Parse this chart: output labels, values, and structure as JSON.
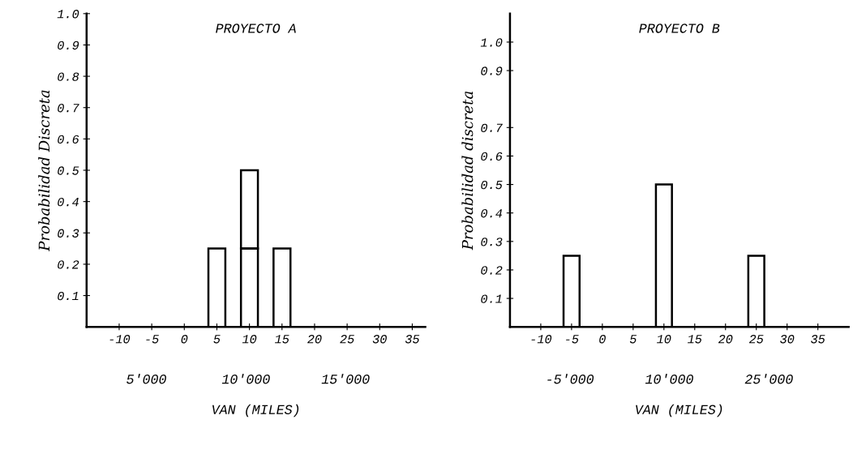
{
  "chart_data": [
    {
      "type": "bar",
      "title": "PROYECTO A",
      "xlabel": "VAN (MILES)",
      "ylabel": "Probabilidad Discreta",
      "stacked": true,
      "x": [
        5,
        10,
        15
      ],
      "series": [
        {
          "color": "#000000",
          "values": [
            0.25,
            0.25,
            0.25
          ]
        },
        {
          "color": "#000000",
          "values": [
            null,
            0.25,
            null
          ]
        }
      ],
      "xlim": [
        -15,
        37
      ],
      "xticks": [
        -10,
        -5,
        0,
        5,
        10,
        15,
        20,
        25,
        30,
        35
      ],
      "ylim": [
        0,
        1.0
      ],
      "yticks": [
        0.1,
        0.2,
        0.3,
        0.4,
        0.5,
        0.6,
        0.7,
        0.8,
        0.9,
        {
          "value": 1.0,
          "label": "1.0"
        }
      ],
      "annotations": [
        "5'000",
        "10'000",
        "15'000"
      ],
      "grid": false,
      "legend": false
    },
    {
      "type": "bar",
      "title": "PROYECTO B",
      "xlabel": "VAN (MILES)",
      "ylabel": "Probabilidad discreta",
      "x": [
        -5,
        10,
        25
      ],
      "series": [
        {
          "color": "#000000",
          "values": [
            0.25,
            0.5,
            0.25
          ]
        }
      ],
      "xlim": [
        -15,
        40
      ],
      "xticks": [
        -10,
        -5,
        0,
        5,
        10,
        15,
        20,
        25,
        30,
        35
      ],
      "ylim": [
        0,
        1.1
      ],
      "yticks": [
        0.1,
        0.2,
        0.3,
        0.4,
        0.5,
        0.6,
        0.7,
        0.9,
        {
          "value": 1.0,
          "label": "1.0"
        }
      ],
      "annotations": [
        "-5'000",
        "10'000",
        "25'000"
      ],
      "grid": false,
      "legend": false
    }
  ]
}
